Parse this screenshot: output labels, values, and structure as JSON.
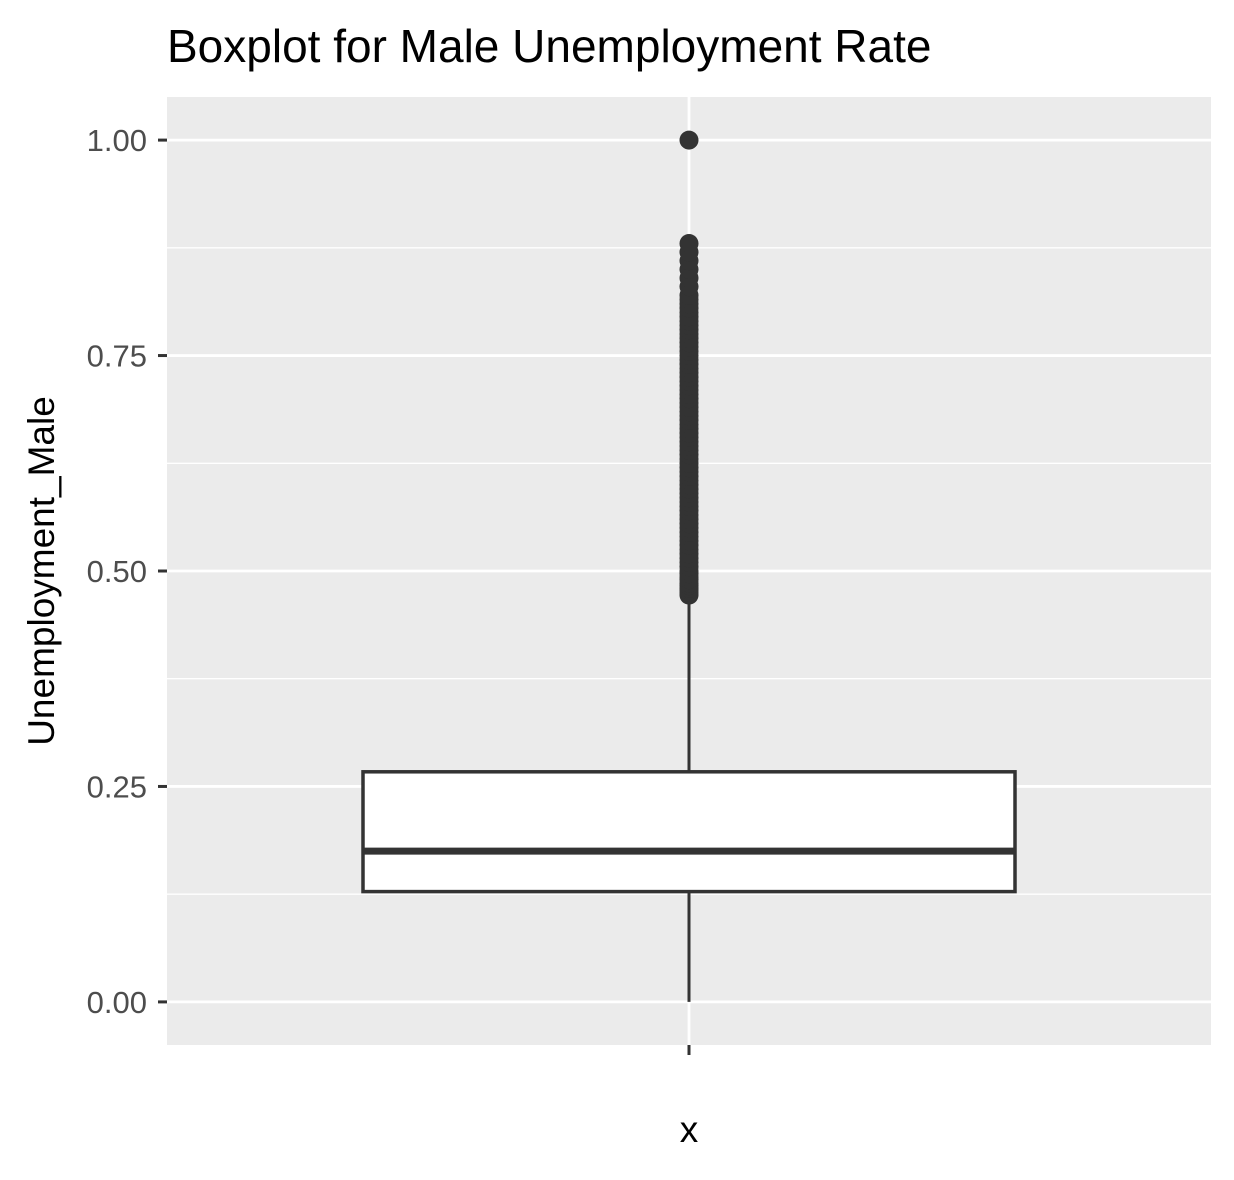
{
  "chart_data": {
    "type": "boxplot",
    "title": "Boxplot for Male Unemployment Rate",
    "xlabel": "x",
    "ylabel": "Unemployment_Male",
    "ylim": [
      -0.05,
      1.05
    ],
    "y_ticks": [
      0.0,
      0.25,
      0.5,
      0.75,
      1.0
    ],
    "y_tick_labels": [
      "0.00",
      "0.25",
      "0.50",
      "0.75",
      "1.00"
    ],
    "grid": true,
    "legend": "none",
    "colors": {
      "panel_background": "#EBEBEB",
      "grid_line": "#FFFFFF",
      "box_fill": "#FFFFFF",
      "box_stroke": "#333333",
      "outlier": "#333333",
      "tick_label": "#4D4D4D",
      "title": "#000000"
    },
    "series": [
      {
        "category": "",
        "min": 0.0,
        "q1": 0.128,
        "median": 0.175,
        "q3": 0.267,
        "upper_whisker": 0.47,
        "outliers": [
          0.472,
          0.475,
          0.478,
          0.48,
          0.483,
          0.486,
          0.49,
          0.493,
          0.497,
          0.5,
          0.505,
          0.51,
          0.515,
          0.52,
          0.525,
          0.53,
          0.535,
          0.54,
          0.545,
          0.55,
          0.555,
          0.56,
          0.565,
          0.57,
          0.575,
          0.58,
          0.585,
          0.59,
          0.595,
          0.6,
          0.605,
          0.61,
          0.615,
          0.62,
          0.625,
          0.63,
          0.635,
          0.64,
          0.645,
          0.65,
          0.655,
          0.66,
          0.665,
          0.67,
          0.675,
          0.68,
          0.685,
          0.69,
          0.695,
          0.7,
          0.705,
          0.71,
          0.715,
          0.72,
          0.725,
          0.73,
          0.735,
          0.74,
          0.745,
          0.75,
          0.755,
          0.76,
          0.765,
          0.77,
          0.775,
          0.78,
          0.785,
          0.79,
          0.795,
          0.8,
          0.805,
          0.81,
          0.815,
          0.82,
          0.83,
          0.84,
          0.85,
          0.86,
          0.87,
          0.88,
          1.0
        ]
      }
    ]
  }
}
